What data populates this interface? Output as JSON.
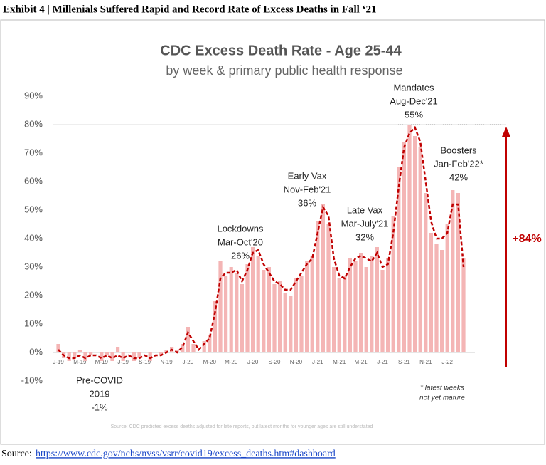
{
  "header": "Exhibit 4 | Millenials Suffered Rapid and Record Rate of Excess Deaths in Fall ‘21",
  "footer": {
    "label": "Source:",
    "link": "https://www.cdc.gov/nchs/nvss/vsrr/covid19/excess_deaths.htm#dashboard"
  },
  "chart_data": {
    "type": "bar",
    "title": "CDC Excess Death Rate - Age 25-44",
    "subtitle": "by week & primary public health response",
    "categories": [
      "J-19",
      null,
      null,
      null,
      "M-19",
      null,
      null,
      null,
      "M-19",
      null,
      null,
      null,
      "J-19",
      null,
      null,
      null,
      "S-19",
      null,
      null,
      null,
      "N-19",
      null,
      null,
      null,
      "J-20",
      null,
      null,
      null,
      "M-20",
      null,
      null,
      null,
      "M-20",
      null,
      null,
      null,
      "J-20",
      null,
      null,
      null,
      "S-20",
      null,
      null,
      null,
      "N-20",
      null,
      null,
      null,
      "J-21",
      null,
      null,
      null,
      "M-21",
      null,
      null,
      null,
      "M-21",
      null,
      null,
      null,
      "J-21",
      null,
      null,
      null,
      "S-21",
      null,
      null,
      null,
      "N-21",
      null,
      null,
      null,
      "J-22",
      null,
      null,
      null
    ],
    "series": [
      {
        "type": "bar",
        "color": "#f4b5b5",
        "values": [
          3,
          -2,
          -3,
          -2,
          1,
          -3,
          -1,
          0,
          -3,
          -1,
          -3,
          2,
          -3,
          0,
          -3,
          -2,
          0,
          -3,
          0,
          -1,
          1,
          2,
          1,
          3,
          9,
          3,
          0,
          4,
          6,
          18,
          32,
          27,
          30,
          28,
          24,
          31,
          37,
          34,
          29,
          30,
          24,
          25,
          21,
          20,
          26,
          27,
          32,
          34,
          46,
          52,
          45,
          30,
          26,
          27,
          33,
          32,
          35,
          30,
          34,
          37,
          29,
          33,
          48,
          65,
          74,
          80,
          76,
          72,
          56,
          42,
          38,
          36,
          45,
          57,
          56,
          33
        ]
      },
      {
        "type": "line",
        "color": "#c00000",
        "dashed": true,
        "values": [
          1,
          -1,
          -2,
          -2,
          -1,
          -2,
          -1,
          -1,
          -2,
          -1,
          -2,
          -1,
          -2,
          -1,
          -2,
          -2,
          -1,
          -2,
          -1,
          -1,
          0,
          1,
          0,
          2,
          7,
          4,
          1,
          3,
          5,
          14,
          26,
          28,
          28,
          29,
          25,
          29,
          35,
          36,
          31,
          28,
          25,
          24,
          22,
          22,
          25,
          28,
          31,
          33,
          42,
          51,
          48,
          33,
          27,
          26,
          30,
          33,
          34,
          33,
          32,
          35,
          30,
          31,
          42,
          58,
          72,
          77,
          79,
          74,
          60,
          46,
          40,
          40,
          42,
          52,
          52,
          30
        ]
      }
    ],
    "ylim": [
      -10,
      90
    ],
    "yticks": [
      {
        "value": -10,
        "label": "-10%"
      },
      {
        "value": 0,
        "label": "0%"
      },
      {
        "value": 10,
        "label": "10%"
      },
      {
        "value": 20,
        "label": "20%"
      },
      {
        "value": 30,
        "label": "30%"
      },
      {
        "value": 40,
        "label": "40%"
      },
      {
        "value": 50,
        "label": "50%"
      },
      {
        "value": 60,
        "label": "60%"
      },
      {
        "value": 70,
        "label": "70%"
      },
      {
        "value": 80,
        "label": "80%"
      },
      {
        "value": 90,
        "label": "90%"
      }
    ],
    "reference_line": 80,
    "change_label": "+84%",
    "annotations": [
      [
        "Pre-COVID",
        "2019",
        "-1%"
      ],
      [
        "Lockdowns",
        "Mar-Oct'20",
        "26%"
      ],
      [
        "Early Vax",
        "Nov-Feb'21",
        "36%"
      ],
      [
        "Late Vax",
        "Mar-July'21",
        "32%"
      ],
      [
        "Mandates",
        "Aug-Dec'21",
        "55%"
      ],
      [
        "Boosters",
        "Jan-Feb'22*",
        "42%"
      ]
    ],
    "note": [
      "* latest weeks",
      "not yet mature"
    ],
    "source_note": "Source: CDC predicted excess deaths adjusted for late reports, but latest months for younger ages are still understated"
  }
}
